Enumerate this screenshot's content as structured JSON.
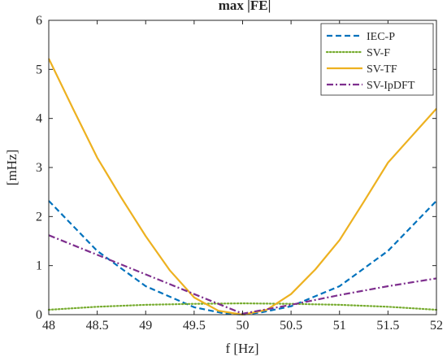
{
  "chart_data": {
    "type": "line",
    "title": "max |FE|",
    "xlabel": "f [Hz]",
    "ylabel": "[mHz]",
    "xlim": [
      48,
      52
    ],
    "ylim": [
      0,
      6
    ],
    "xticks": [
      "48",
      "48.5",
      "49",
      "49.5",
      "50",
      "50.5",
      "51",
      "51.5",
      "52"
    ],
    "yticks": [
      "0",
      "1",
      "2",
      "3",
      "4",
      "5",
      "6"
    ],
    "grid": false,
    "legend_position": "top-right",
    "series": [
      {
        "name": "IEC-P",
        "color": "#0072BD",
        "style": "dashed",
        "x": [
          48,
          48.5,
          49,
          49.5,
          49.8,
          50,
          50.2,
          50.5,
          51,
          51.5,
          52
        ],
        "y": [
          2.32,
          1.3,
          0.58,
          0.15,
          0.03,
          0.0,
          0.05,
          0.17,
          0.58,
          1.3,
          2.32
        ]
      },
      {
        "name": "SV-F",
        "color": "#77AC30",
        "style": "dotted",
        "x": [
          48,
          48.5,
          49,
          49.5,
          50,
          50.5,
          51,
          51.5,
          52
        ],
        "y": [
          0.1,
          0.16,
          0.2,
          0.22,
          0.23,
          0.22,
          0.2,
          0.16,
          0.1
        ]
      },
      {
        "name": "SV-TF",
        "color": "#EDB120",
        "style": "solid",
        "x": [
          48,
          48.25,
          48.5,
          48.75,
          49,
          49.25,
          49.5,
          49.75,
          50,
          50.25,
          50.5,
          50.75,
          51,
          51.25,
          51.5,
          51.75,
          52
        ],
        "y": [
          5.22,
          4.2,
          3.2,
          2.38,
          1.6,
          0.9,
          0.35,
          0.08,
          0.0,
          0.1,
          0.42,
          0.92,
          1.52,
          2.3,
          3.1,
          3.65,
          4.2
        ]
      },
      {
        "name": "SV-IpDFT",
        "color": "#7E2F8E",
        "style": "dashdot",
        "x": [
          48,
          48.5,
          49,
          49.5,
          50,
          50.5,
          51,
          51.5,
          52
        ],
        "y": [
          1.62,
          1.22,
          0.82,
          0.42,
          0.02,
          0.2,
          0.4,
          0.58,
          0.74
        ]
      }
    ]
  }
}
